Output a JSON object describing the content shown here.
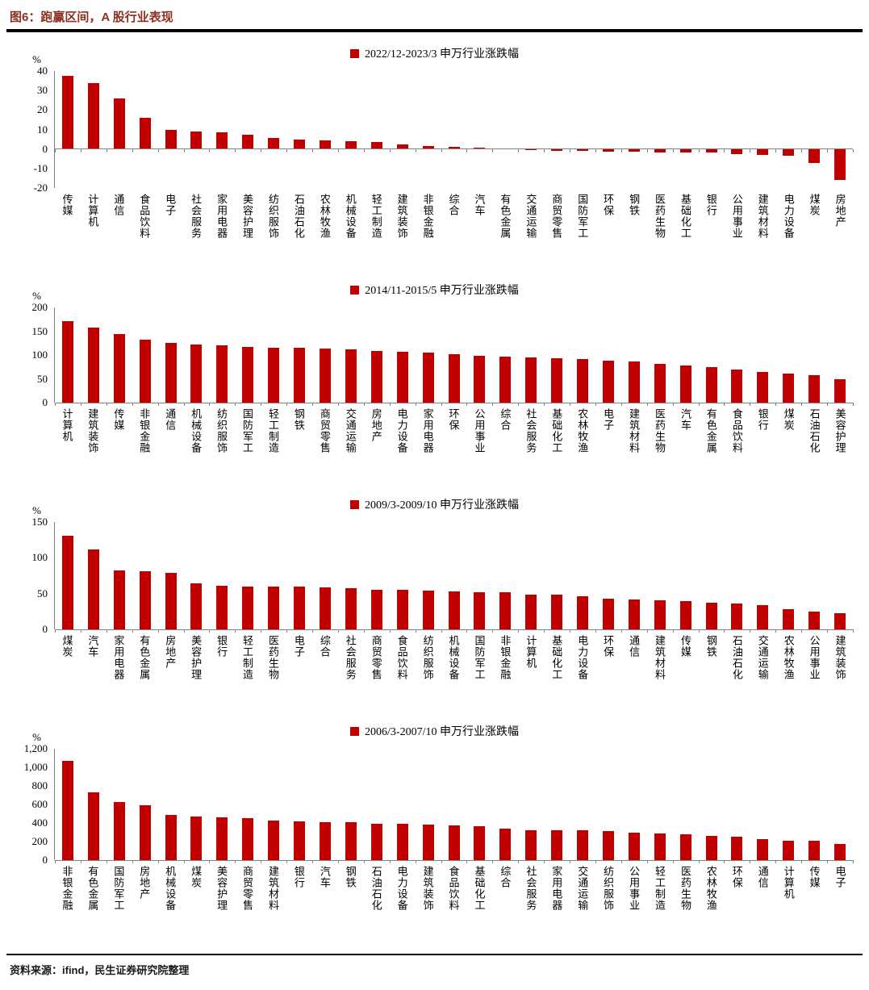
{
  "page": {
    "title": "图6：跑赢区间，A 股行业表现",
    "source": "资料来源：ifind，民生证券研究院整理"
  },
  "colors": {
    "bar": "#C00000",
    "title": "#8B3020",
    "axis": "#808080"
  },
  "chart_data": [
    {
      "type": "bar",
      "title": "2022/12-2023/3 申万行业涨跌幅",
      "ylabel": "%",
      "ylim": [
        -20,
        40
      ],
      "yticks": [
        40,
        30,
        20,
        10,
        0,
        -10,
        -20
      ],
      "ytick_labels": [
        "40",
        "30",
        "20",
        "10",
        "0",
        "-10",
        "-20"
      ],
      "legend_position": "top-center",
      "grid": false,
      "categories": [
        "传媒",
        "计算机",
        "通信",
        "食品饮料",
        "电子",
        "社会服务",
        "家用电器",
        "美容护理",
        "纺织服饰",
        "石油石化",
        "农林牧渔",
        "机械设备",
        "轻工制造",
        "建筑装饰",
        "非银金融",
        "综合",
        "汽车",
        "有色金属",
        "交通运输",
        "商贸零售",
        "国防军工",
        "环保",
        "钢铁",
        "医药生物",
        "基础化工",
        "银行",
        "公用事业",
        "建筑材料",
        "电力设备",
        "煤炭",
        "房地产"
      ],
      "values": [
        37.5,
        34,
        26,
        16,
        10,
        9,
        8.5,
        7.5,
        5.5,
        5,
        4.5,
        4,
        3.5,
        2.5,
        1.5,
        1,
        0.5,
        0.3,
        -0.3,
        -0.8,
        -1,
        -1.2,
        -1.5,
        -1.8,
        -1.8,
        -2,
        -2.8,
        -3,
        -3.5,
        -7,
        -16
      ]
    },
    {
      "type": "bar",
      "title": "2014/11-2015/5 申万行业涨跌幅",
      "ylabel": "%",
      "ylim": [
        0,
        200
      ],
      "yticks": [
        200,
        150,
        100,
        50,
        0
      ],
      "ytick_labels": [
        "200",
        "150",
        "100",
        "50",
        "0"
      ],
      "legend_position": "top-center",
      "grid": false,
      "categories": [
        "计算机",
        "建筑装饰",
        "传媒",
        "非银金融",
        "通信",
        "机械设备",
        "纺织服饰",
        "国防军工",
        "轻工制造",
        "钢铁",
        "商贸零售",
        "交通运输",
        "房地产",
        "电力设备",
        "家用电器",
        "环保",
        "公用事业",
        "综合",
        "社会服务",
        "基础化工",
        "农林牧渔",
        "电子",
        "建筑材料",
        "医药生物",
        "汽车",
        "有色金属",
        "食品饮料",
        "银行",
        "煤炭",
        "石油石化",
        "美容护理"
      ],
      "values": [
        172,
        157,
        144,
        133,
        126,
        122,
        120,
        117,
        116,
        115,
        114,
        112,
        108,
        106,
        105,
        102,
        98,
        96,
        95,
        94,
        92,
        88,
        86,
        81,
        78,
        74,
        69,
        64,
        61,
        58,
        50
      ]
    },
    {
      "type": "bar",
      "title": "2009/3-2009/10 申万行业涨跌幅",
      "ylabel": "%",
      "ylim": [
        0,
        150
      ],
      "yticks": [
        150,
        100,
        50,
        0
      ],
      "ytick_labels": [
        "150",
        "100",
        "50",
        "0"
      ],
      "legend_position": "top-center",
      "grid": false,
      "categories": [
        "煤炭",
        "汽车",
        "家用电器",
        "有色金属",
        "房地产",
        "美容护理",
        "银行",
        "轻工制造",
        "医药生物",
        "电子",
        "综合",
        "社会服务",
        "商贸零售",
        "食品饮料",
        "纺织服饰",
        "机械设备",
        "国防军工",
        "非银金融",
        "计算机",
        "基础化工",
        "电力设备",
        "环保",
        "通信",
        "建筑材料",
        "传媒",
        "钢铁",
        "石油石化",
        "交通运输",
        "农林牧渔",
        "公用事业",
        "建筑装饰"
      ],
      "values": [
        131,
        112,
        82,
        81,
        79,
        64,
        61,
        60,
        60,
        60,
        59,
        58,
        55,
        55,
        54,
        53,
        52,
        52,
        49,
        48,
        46,
        43,
        42,
        41,
        40,
        37,
        36,
        34,
        28,
        25,
        22
      ]
    },
    {
      "type": "bar",
      "title": "2006/3-2007/10 申万行业涨跌幅",
      "ylabel": "%",
      "ylim": [
        0,
        1200
      ],
      "yticks": [
        1200,
        1000,
        800,
        600,
        400,
        200,
        0
      ],
      "ytick_labels": [
        "1,200",
        "1,000",
        "800",
        "600",
        "400",
        "200",
        "0"
      ],
      "legend_position": "top-center",
      "grid": false,
      "categories": [
        "非银金融",
        "有色金属",
        "国防军工",
        "房地产",
        "机械设备",
        "煤炭",
        "美容护理",
        "商贸零售",
        "建筑材料",
        "银行",
        "汽车",
        "钢铁",
        "石油石化",
        "电力设备",
        "建筑装饰",
        "食品饮料",
        "基础化工",
        "综合",
        "社会服务",
        "家用电器",
        "交通运输",
        "纺织服饰",
        "公用事业",
        "轻工制造",
        "医药生物",
        "农林牧渔",
        "环保",
        "通信",
        "计算机",
        "传媒",
        "电子"
      ],
      "values": [
        1070,
        730,
        625,
        595,
        490,
        470,
        465,
        455,
        430,
        415,
        410,
        405,
        395,
        390,
        385,
        370,
        365,
        335,
        325,
        320,
        320,
        310,
        300,
        285,
        280,
        265,
        255,
        225,
        210,
        205,
        170
      ]
    }
  ]
}
